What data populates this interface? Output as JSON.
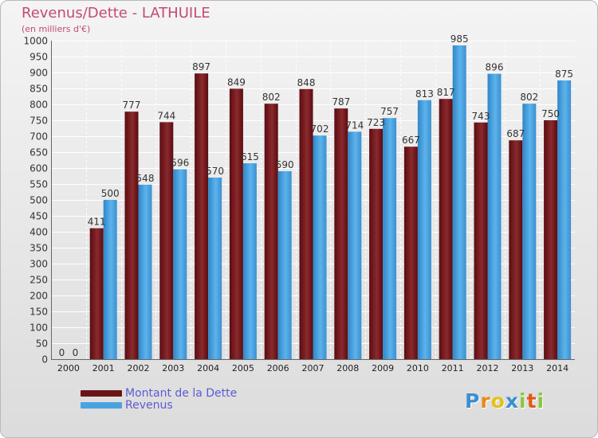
{
  "header": {
    "title": "Revenus/Dette - LATHUILE",
    "subtitle": "(en milliers d'€)"
  },
  "chart_data": {
    "type": "bar",
    "categories": [
      "2000",
      "2001",
      "2002",
      "2003",
      "2004",
      "2005",
      "2006",
      "2007",
      "2008",
      "2009",
      "2010",
      "2011",
      "2012",
      "2013",
      "2014"
    ],
    "series": [
      {
        "name": "Montant de la Dette",
        "color": "#7a1f23",
        "values": [
          0,
          411,
          777,
          744,
          897,
          849,
          802,
          848,
          787,
          723,
          667,
          817,
          743,
          687,
          750
        ]
      },
      {
        "name": "Revenus",
        "color": "#4aa3e0",
        "values": [
          0,
          500,
          548,
          596,
          570,
          615,
          590,
          702,
          714,
          757,
          813,
          985,
          896,
          802,
          875
        ]
      }
    ],
    "ylim": [
      0,
      1000
    ],
    "ytick_step": 50,
    "grid": true,
    "legend_placement": "bottom-left"
  },
  "legend": [
    {
      "label": "Montant de la Dette",
      "color": "#6b1418"
    },
    {
      "label": "Revenus",
      "color": "#4aa3e0"
    }
  ],
  "logo": {
    "letters": [
      "P",
      "r",
      "o",
      "x",
      "i",
      "t",
      "i"
    ],
    "colors": [
      "#3b8fd1",
      "#e88a1a",
      "#e0c21c",
      "#3b8fd1",
      "#8cc63e",
      "#e05a1a",
      "#8cc63e"
    ]
  }
}
